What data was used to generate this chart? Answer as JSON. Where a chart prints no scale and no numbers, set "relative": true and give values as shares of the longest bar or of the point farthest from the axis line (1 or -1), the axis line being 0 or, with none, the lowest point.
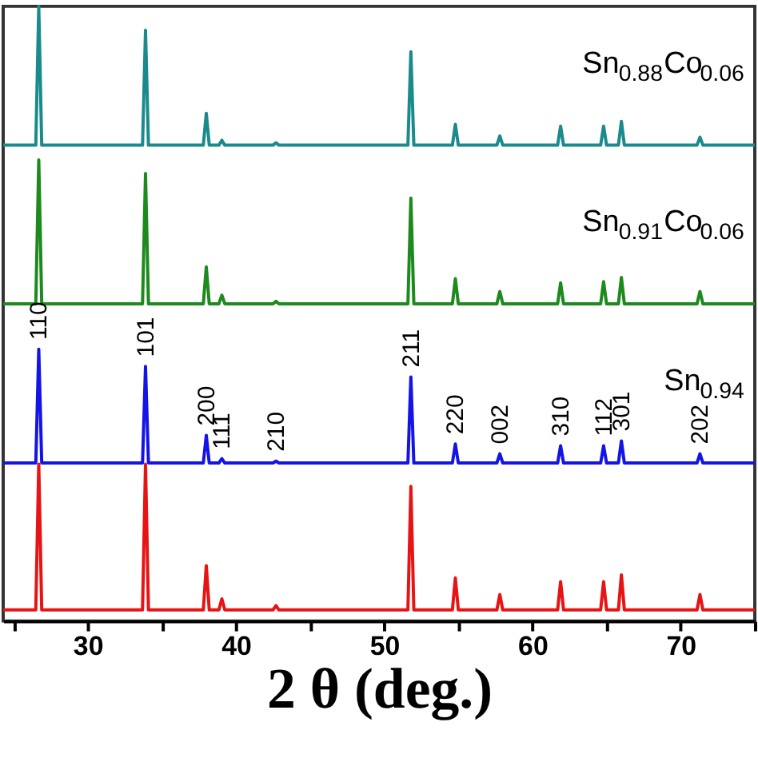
{
  "chart_data": {
    "type": "line",
    "relative": true,
    "xlabel": "2 θ (deg.)",
    "xlim": [
      24.3,
      75
    ],
    "xticks": [
      {
        "value": 25,
        "label": null
      },
      30,
      {
        "value": 35,
        "label": null
      },
      40,
      {
        "value": 45,
        "label": null
      },
      50,
      {
        "value": 55,
        "label": null
      },
      60,
      {
        "value": 65,
        "label": null
      },
      70,
      {
        "value": 75,
        "label": null
      }
    ],
    "grid": false,
    "marker": "none",
    "line_style": "solid",
    "x": [
      24.3,
      26.5,
      26.7,
      26.9,
      33.7,
      33.9,
      34.1,
      37.8,
      38.0,
      38.2,
      38.85,
      39.05,
      39.25,
      42.5,
      42.7,
      42.9,
      51.6,
      51.8,
      52.0,
      54.6,
      54.8,
      55.0,
      57.6,
      57.8,
      58.0,
      61.7,
      61.9,
      62.1,
      64.6,
      64.8,
      65.0,
      65.8,
      66.0,
      66.2,
      71.1,
      71.3,
      71.5,
      75
    ],
    "series": [
      {
        "name": "Sn$_{0.88}$Co$_{0.06}$",
        "color": "#1b8a8c",
        "values": [
          0.774,
          0.774,
          1.0,
          0.774,
          0.774,
          0.961,
          0.774,
          0.774,
          0.826,
          0.774,
          0.774,
          0.782,
          0.774,
          0.774,
          0.778,
          0.774,
          0.774,
          0.926,
          0.774,
          0.774,
          0.808,
          0.774,
          0.774,
          0.789,
          0.774,
          0.774,
          0.805,
          0.774,
          0.774,
          0.805,
          0.774,
          0.774,
          0.813,
          0.774,
          0.774,
          0.787,
          0.774,
          0.774
        ]
      },
      {
        "name": "Sn$_{0.91}$Co$_{0.06}$",
        "color": "#1d8a1d",
        "values": [
          0.516,
          0.516,
          0.75,
          0.516,
          0.516,
          0.728,
          0.516,
          0.516,
          0.576,
          0.516,
          0.516,
          0.53,
          0.516,
          0.516,
          0.52,
          0.516,
          0.516,
          0.688,
          0.516,
          0.516,
          0.557,
          0.516,
          0.516,
          0.536,
          0.516,
          0.516,
          0.55,
          0.516,
          0.516,
          0.552,
          0.516,
          0.516,
          0.559,
          0.516,
          0.516,
          0.536,
          0.516,
          0.516
        ]
      },
      {
        "name": "Sn$_{0.94}$",
        "color": "#1414e6",
        "values": [
          0.257,
          0.257,
          0.442,
          0.257,
          0.257,
          0.414,
          0.257,
          0.257,
          0.302,
          0.257,
          0.257,
          0.264,
          0.257,
          0.257,
          0.26,
          0.257,
          0.257,
          0.397,
          0.257,
          0.257,
          0.288,
          0.257,
          0.257,
          0.272,
          0.257,
          0.257,
          0.285,
          0.257,
          0.257,
          0.285,
          0.257,
          0.257,
          0.293,
          0.257,
          0.257,
          0.272,
          0.257,
          0.257
        ]
      },
      {
        "color": "#e61414",
        "values": [
          0.018,
          0.018,
          0.255,
          0.018,
          0.018,
          0.255,
          0.018,
          0.018,
          0.09,
          0.018,
          0.018,
          0.036,
          0.018,
          0.018,
          0.025,
          0.018,
          0.018,
          0.219,
          0.018,
          0.018,
          0.07,
          0.018,
          0.018,
          0.043,
          0.018,
          0.018,
          0.064,
          0.018,
          0.018,
          0.064,
          0.018,
          0.018,
          0.075,
          0.018,
          0.018,
          0.043,
          0.018,
          0.018
        ]
      }
    ],
    "annotations": [
      {
        "text": "110",
        "x": 26.7,
        "y": 0.442
      },
      {
        "text": "101",
        "x": 33.9,
        "y": 0.414
      },
      {
        "text": "200",
        "x": 38.0,
        "y": 0.302
      },
      {
        "text": "111",
        "x": 39.05,
        "y": 0.264
      },
      {
        "text": "210",
        "x": 42.7,
        "y": 0.26
      },
      {
        "text": "211",
        "x": 51.8,
        "y": 0.397
      },
      {
        "text": "220",
        "x": 54.8,
        "y": 0.288
      },
      {
        "text": "002",
        "x": 57.8,
        "y": 0.272
      },
      {
        "text": "310",
        "x": 61.9,
        "y": 0.285
      },
      {
        "text": "112",
        "x": 64.8,
        "y": 0.285
      },
      {
        "text": "301",
        "x": 66.0,
        "y": 0.293
      },
      {
        "text": "202",
        "x": 71.3,
        "y": 0.272
      }
    ]
  }
}
